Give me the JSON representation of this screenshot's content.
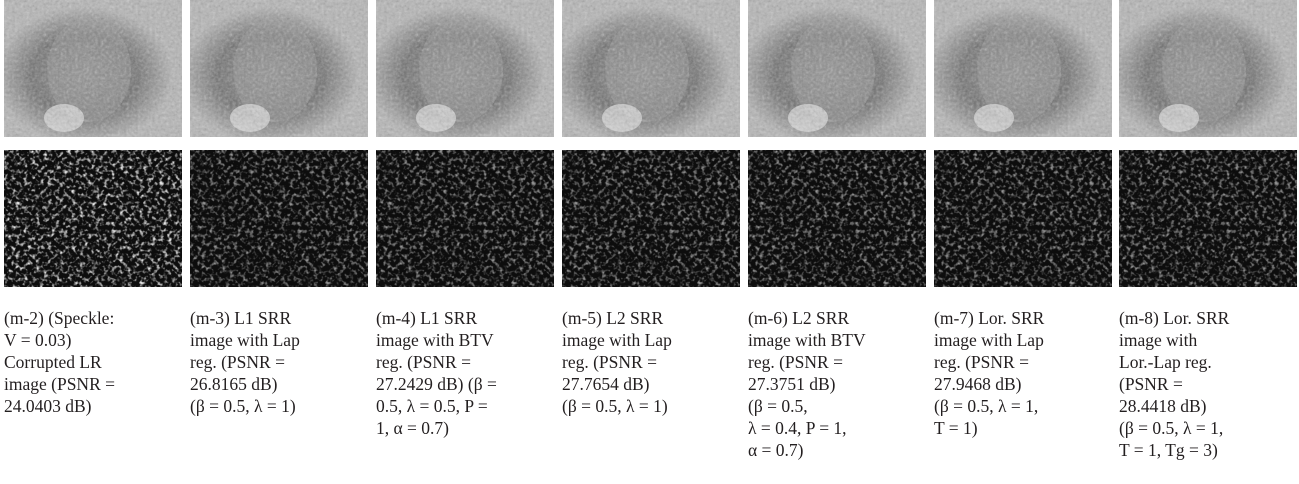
{
  "panels": [
    {
      "caption_lines": [
        "(m-2) (Speckle:",
        "V = 0.03)",
        "Corrupted LR",
        "image (PSNR =",
        "24.0403 dB)"
      ]
    },
    {
      "caption_lines": [
        "(m-3) L1 SRR",
        "image with Lap",
        "reg. (PSNR =",
        "26.8165 dB)",
        "(β = 0.5, λ = 1)"
      ]
    },
    {
      "caption_lines": [
        "(m-4) L1 SRR",
        "image with BTV",
        "reg. (PSNR =",
        "27.2429 dB) (β =",
        "0.5, λ = 0.5, P =",
        "1, α = 0.7)"
      ]
    },
    {
      "caption_lines": [
        "(m-5) L2 SRR",
        "image with Lap",
        "reg. (PSNR =",
        "27.7654 dB)",
        "(β = 0.5, λ = 1)"
      ]
    },
    {
      "caption_lines": [
        "(m-6) L2 SRR",
        "image with BTV",
        "reg. (PSNR =",
        "27.3751 dB)",
        "(β = 0.5,",
        "λ = 0.4, P = 1,",
        "α = 0.7)"
      ]
    },
    {
      "caption_lines": [
        "(m-7) Lor. SRR",
        "image with Lap",
        "reg. (PSNR =",
        "27.9468 dB)",
        "(β = 0.5, λ = 1,",
        "T = 1)"
      ]
    },
    {
      "caption_lines": [
        "(m-8) Lor. SRR",
        "image with",
        "Lor.-Lap reg.",
        "(PSNR =",
        "28.4418 dB)",
        "(β = 0.5, λ = 1,",
        "T = 1, Tg = 3)"
      ]
    }
  ]
}
